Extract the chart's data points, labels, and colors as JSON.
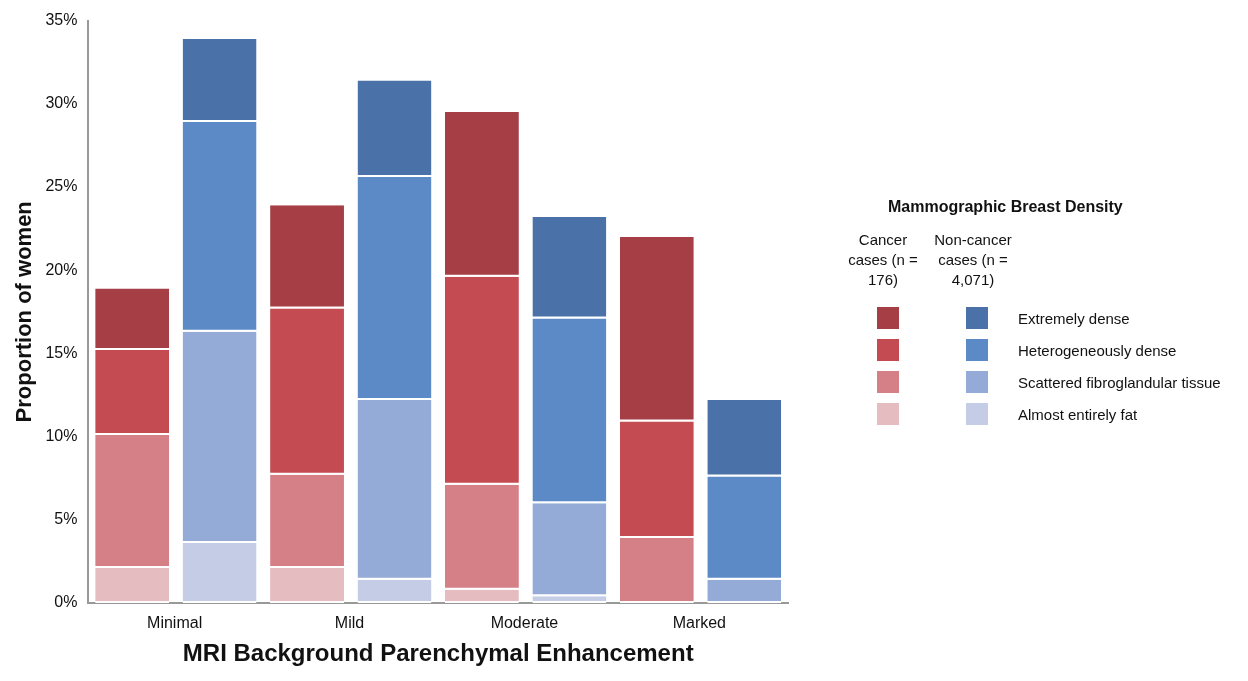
{
  "chart_data": {
    "type": "bar",
    "stacked": true,
    "xlabel": "MRI Background Parenchymal Enhancement",
    "ylabel": "Proportion of women",
    "legend_title": "Mammographic Breast Density",
    "legend": "right",
    "grid": false,
    "categories": [
      "Minimal",
      null,
      "Mild",
      null,
      "Moderate",
      null,
      "Marked",
      null
    ],
    "annotations": [
      "Cancer cases (n = 176)",
      "Non-cancer cases (n = 4,071)"
    ],
    "ylim": [
      0,
      35
    ],
    "yticks": [
      {
        "value": 0,
        "label": "0%"
      },
      {
        "value": 5,
        "label": "5%"
      },
      {
        "value": 10,
        "label": "10%"
      },
      {
        "value": 15,
        "label": "15%"
      },
      {
        "value": 20,
        "label": "20%"
      },
      {
        "value": 25,
        "label": "25%"
      },
      {
        "value": 30,
        "label": "30%"
      },
      {
        "value": 35,
        "label": "35%"
      }
    ],
    "series": [
      {
        "color": "#e5bcc0",
        "values": [
          2.1,
          null,
          2.1,
          null,
          0.8,
          null,
          0,
          null
        ]
      },
      {
        "color": "#d57f86",
        "values": [
          8.0,
          null,
          5.6,
          null,
          6.3,
          null,
          3.9,
          null
        ]
      },
      {
        "color": "#c44b52",
        "values": [
          5.1,
          null,
          10.0,
          null,
          12.5,
          null,
          7.0,
          null
        ]
      },
      {
        "color": "#a53e45",
        "values": [
          3.7,
          null,
          6.2,
          null,
          9.9,
          null,
          11.1,
          null
        ]
      },
      {
        "name": "Almost entirely fat",
        "color": "#c5cde6",
        "values": [
          null,
          3.6,
          null,
          1.4,
          null,
          0.4,
          null,
          0
        ]
      },
      {
        "name": "Scattered fibroglandular tissue",
        "color": "#93abd6",
        "values": [
          null,
          12.7,
          null,
          10.8,
          null,
          5.6,
          null,
          1.4
        ]
      },
      {
        "name": "Heterogeneously dense",
        "color": "#5b8ac6",
        "values": [
          null,
          12.6,
          null,
          13.4,
          null,
          11.1,
          null,
          6.2
        ]
      },
      {
        "name": "Extremely dense",
        "color": "#4a72a8",
        "values": [
          null,
          5.0,
          null,
          5.8,
          null,
          6.1,
          null,
          4.6
        ]
      }
    ]
  }
}
